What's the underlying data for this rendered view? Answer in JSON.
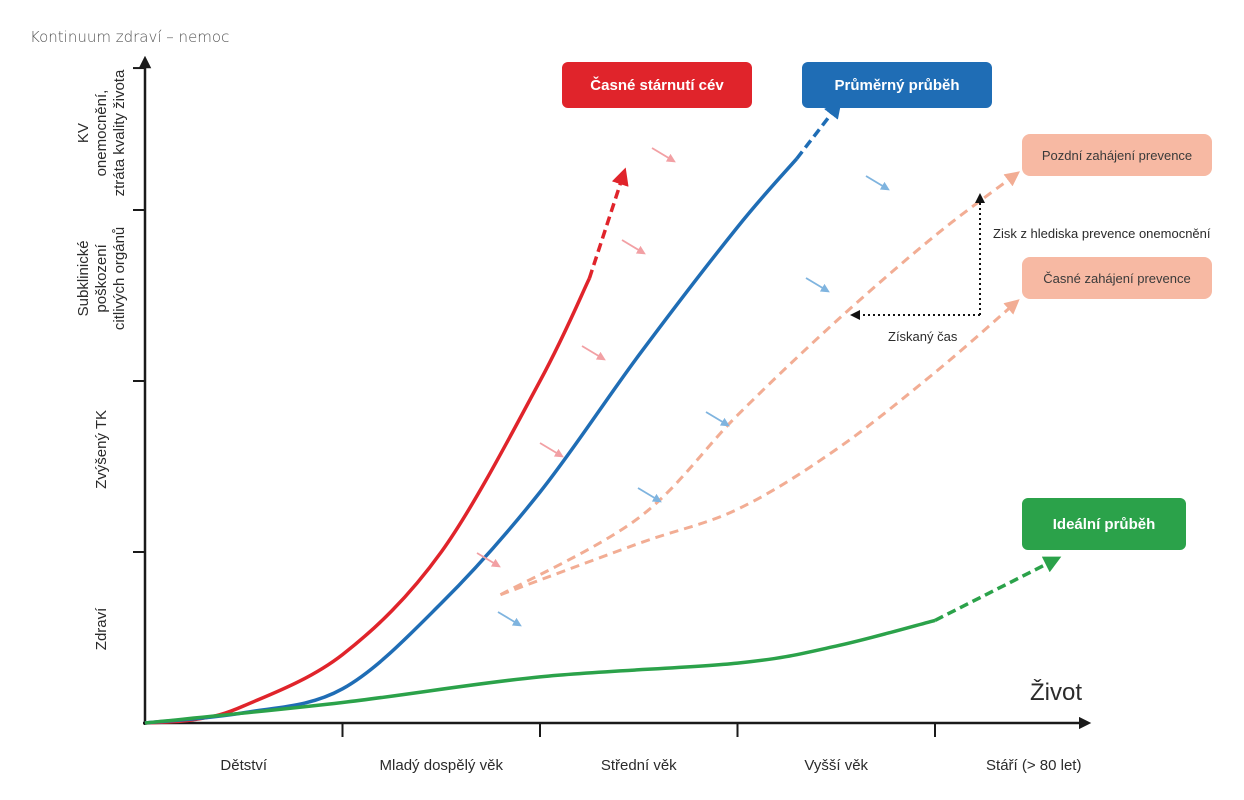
{
  "caption": "Kontinuum zdraví – nemoc",
  "chart_data": {
    "type": "line",
    "title": "",
    "xlabel": "Život",
    "x_categories": [
      "Dětství",
      "Mladý dospělý věk",
      "Střední věk",
      "Vyšší věk",
      "Stáří (> 80 let)"
    ],
    "y_categories": [
      "Zdraví",
      "Zvýšený TK",
      "Subklinické poškození citlivých orgánů",
      "KV onemocnění, ztráta kvality života"
    ],
    "y_label_lines": [
      [
        "Zdraví"
      ],
      [
        "Zvýšený TK"
      ],
      [
        "Subklinické",
        "poškození",
        "citlivých orgánů"
      ],
      [
        "KV",
        "onemocnění,",
        "ztráta kvality života"
      ]
    ],
    "series": [
      {
        "name": "Časné stárnutí cév",
        "color": "#e0242b",
        "style": "solid-then-dashed",
        "x": [
          0,
          0.25,
          0.5,
          1.0,
          1.5,
          2.0,
          2.25,
          2.42
        ],
        "y": [
          0,
          0.02,
          0.1,
          0.4,
          1.0,
          2.0,
          2.6,
          3.2
        ]
      },
      {
        "name": "Průměrný průběh",
        "color": "#1f6db5",
        "style": "solid-then-dashed",
        "x": [
          0,
          0.5,
          1.0,
          1.5,
          2.0,
          2.5,
          3.0,
          3.3,
          3.5
        ],
        "y": [
          0,
          0.06,
          0.2,
          0.7,
          1.35,
          2.15,
          2.9,
          3.3,
          3.6
        ]
      },
      {
        "name": "Pozdní zahájení prevence",
        "color": "#f2ad94",
        "style": "dashed",
        "x": [
          1.8,
          2.5,
          3.0,
          3.5,
          4.0,
          4.4
        ],
        "y": [
          0.75,
          1.2,
          1.8,
          2.35,
          2.85,
          3.2
        ]
      },
      {
        "name": "Časné zahájení prevence",
        "color": "#f2ad94",
        "style": "dashed",
        "x": [
          1.8,
          2.5,
          3.0,
          3.5,
          4.0,
          4.4
        ],
        "y": [
          0.75,
          1.05,
          1.25,
          1.6,
          2.05,
          2.45
        ]
      },
      {
        "name": "Ideální průběh",
        "color": "#2ba24a",
        "style": "solid-then-dashed",
        "x": [
          0,
          1.0,
          2.0,
          3.0,
          3.5,
          4.0,
          4.6
        ],
        "y": [
          0,
          0.12,
          0.27,
          0.35,
          0.45,
          0.6,
          0.95
        ]
      }
    ],
    "labels": [
      {
        "text": "Časné stárnutí cév",
        "fill": "#e0242b",
        "text_color": "#ffffff"
      },
      {
        "text": "Průměrný průběh",
        "fill": "#1f6db5",
        "text_color": "#ffffff"
      },
      {
        "text": "Pozdní zahájení prevence",
        "fill": "#f7b9a3",
        "text_color": "#3a3a3a"
      },
      {
        "text": "Časné zahájení prevence",
        "fill": "#f7b9a3",
        "text_color": "#3a3a3a"
      },
      {
        "text": "Ideální průběh",
        "fill": "#2ba24a",
        "text_color": "#ffffff"
      }
    ],
    "annotations": {
      "gain_prevention": "Zisk z hlediska prevence onemocnění",
      "gained_time": "Získaný čas"
    }
  }
}
